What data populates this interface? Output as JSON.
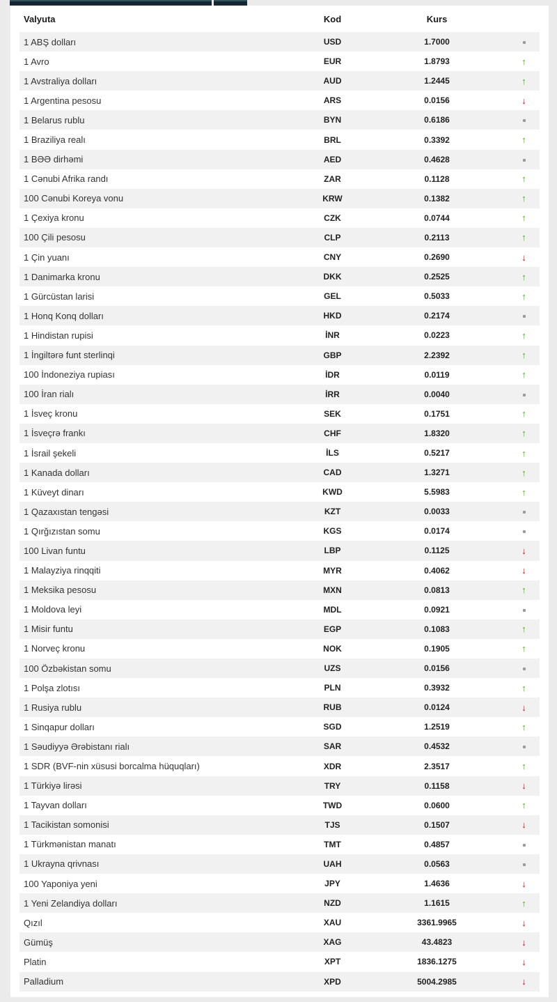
{
  "colors": {
    "up": "#2fbe00",
    "down": "#d60000",
    "neutral": "#9a9a9a",
    "tab_bar": "#152730",
    "row_alt": "#f1f1f1",
    "page_background": "#ebebeb",
    "text": "#333333"
  },
  "icons": {
    "up": "↑",
    "down": "↓"
  },
  "table": {
    "columns": {
      "currency": "Valyuta",
      "code": "Kod",
      "rate": "Kurs"
    },
    "rows": [
      {
        "name": "1 ABŞ dolları",
        "code": "USD",
        "rate": "1.7000",
        "trend": "none"
      },
      {
        "name": "1 Avro",
        "code": "EUR",
        "rate": "1.8793",
        "trend": "up"
      },
      {
        "name": "1 Avstraliya dolları",
        "code": "AUD",
        "rate": "1.2445",
        "trend": "up"
      },
      {
        "name": "1 Argentina pesosu",
        "code": "ARS",
        "rate": "0.0156",
        "trend": "down"
      },
      {
        "name": "1 Belarus rublu",
        "code": "BYN",
        "rate": "0.6186",
        "trend": "none"
      },
      {
        "name": "1 Braziliya realı",
        "code": "BRL",
        "rate": "0.3392",
        "trend": "up"
      },
      {
        "name": "1 BƏƏ dirhəmi",
        "code": "AED",
        "rate": "0.4628",
        "trend": "none"
      },
      {
        "name": "1 Cənubi Afrika randı",
        "code": "ZAR",
        "rate": "0.1128",
        "trend": "up"
      },
      {
        "name": "100 Cənubi Koreya vonu",
        "code": "KRW",
        "rate": "0.1382",
        "trend": "up"
      },
      {
        "name": "1 Çexiya kronu",
        "code": "CZK",
        "rate": "0.0744",
        "trend": "up"
      },
      {
        "name": "100 Çili pesosu",
        "code": "CLP",
        "rate": "0.2113",
        "trend": "up"
      },
      {
        "name": "1 Çin yuanı",
        "code": "CNY",
        "rate": "0.2690",
        "trend": "down"
      },
      {
        "name": "1 Danimarka kronu",
        "code": "DKK",
        "rate": "0.2525",
        "trend": "up"
      },
      {
        "name": "1 Gürcüstan larisi",
        "code": "GEL",
        "rate": "0.5033",
        "trend": "up"
      },
      {
        "name": "1 Honq Konq dolları",
        "code": "HKD",
        "rate": "0.2174",
        "trend": "none"
      },
      {
        "name": "1 Hindistan rupisi",
        "code": "İNR",
        "rate": "0.0223",
        "trend": "up"
      },
      {
        "name": "1 İngiltərə funt sterlinqi",
        "code": "GBP",
        "rate": "2.2392",
        "trend": "up"
      },
      {
        "name": "100 İndoneziya rupiası",
        "code": "İDR",
        "rate": "0.0119",
        "trend": "up"
      },
      {
        "name": "100 İran rialı",
        "code": "İRR",
        "rate": "0.0040",
        "trend": "none"
      },
      {
        "name": "1 İsveç kronu",
        "code": "SEK",
        "rate": "0.1751",
        "trend": "up"
      },
      {
        "name": "1 İsveçrə frankı",
        "code": "CHF",
        "rate": "1.8320",
        "trend": "up"
      },
      {
        "name": "1 İsrail şekeli",
        "code": "İLS",
        "rate": "0.5217",
        "trend": "up"
      },
      {
        "name": "1 Kanada dolları",
        "code": "CAD",
        "rate": "1.3271",
        "trend": "up"
      },
      {
        "name": "1 Küveyt dinarı",
        "code": "KWD",
        "rate": "5.5983",
        "trend": "up"
      },
      {
        "name": "1 Qazaxıstan tengəsi",
        "code": "KZT",
        "rate": "0.0033",
        "trend": "none"
      },
      {
        "name": "1 Qırğızıstan somu",
        "code": "KGS",
        "rate": "0.0174",
        "trend": "none"
      },
      {
        "name": "100 Livan funtu",
        "code": "LBP",
        "rate": "0.1125",
        "trend": "down"
      },
      {
        "name": "1 Malayziya rinqqiti",
        "code": "MYR",
        "rate": "0.4062",
        "trend": "down"
      },
      {
        "name": "1 Meksika pesosu",
        "code": "MXN",
        "rate": "0.0813",
        "trend": "up"
      },
      {
        "name": "1 Moldova leyi",
        "code": "MDL",
        "rate": "0.0921",
        "trend": "none"
      },
      {
        "name": "1 Misir funtu",
        "code": "EGP",
        "rate": "0.1083",
        "trend": "up"
      },
      {
        "name": "1 Norveç kronu",
        "code": "NOK",
        "rate": "0.1905",
        "trend": "up"
      },
      {
        "name": "100 Özbəkistan somu",
        "code": "UZS",
        "rate": "0.0156",
        "trend": "none"
      },
      {
        "name": "1 Polşa zlotısı",
        "code": "PLN",
        "rate": "0.3932",
        "trend": "up"
      },
      {
        "name": "1 Rusiya rublu",
        "code": "RUB",
        "rate": "0.0124",
        "trend": "down"
      },
      {
        "name": "1 Sinqapur dolları",
        "code": "SGD",
        "rate": "1.2519",
        "trend": "up"
      },
      {
        "name": "1 Səudiyyə Ərəbistanı rialı",
        "code": "SAR",
        "rate": "0.4532",
        "trend": "none"
      },
      {
        "name": "1 SDR (BVF-nin xüsusi borcalma hüquqları)",
        "code": "XDR",
        "rate": "2.3517",
        "trend": "up"
      },
      {
        "name": "1 Türkiyə lirəsi",
        "code": "TRY",
        "rate": "0.1158",
        "trend": "down"
      },
      {
        "name": "1 Tayvan dolları",
        "code": "TWD",
        "rate": "0.0600",
        "trend": "up"
      },
      {
        "name": "1 Tacikistan somonisi",
        "code": "TJS",
        "rate": "0.1507",
        "trend": "down"
      },
      {
        "name": "1 Türkmənistan manatı",
        "code": "TMT",
        "rate": "0.4857",
        "trend": "none"
      },
      {
        "name": "1 Ukrayna qrivnası",
        "code": "UAH",
        "rate": "0.0563",
        "trend": "none"
      },
      {
        "name": "100 Yaponiya yeni",
        "code": "JPY",
        "rate": "1.4636",
        "trend": "down"
      },
      {
        "name": "1 Yeni Zelandiya dolları",
        "code": "NZD",
        "rate": "1.1615",
        "trend": "up"
      },
      {
        "name": "Qızıl",
        "code": "XAU",
        "rate": "3361.9965",
        "trend": "down"
      },
      {
        "name": "Gümüş",
        "code": "XAG",
        "rate": "43.4823",
        "trend": "down"
      },
      {
        "name": "Platin",
        "code": "XPT",
        "rate": "1836.1275",
        "trend": "down"
      },
      {
        "name": "Palladium",
        "code": "XPD",
        "rate": "5004.2985",
        "trend": "down"
      }
    ]
  }
}
